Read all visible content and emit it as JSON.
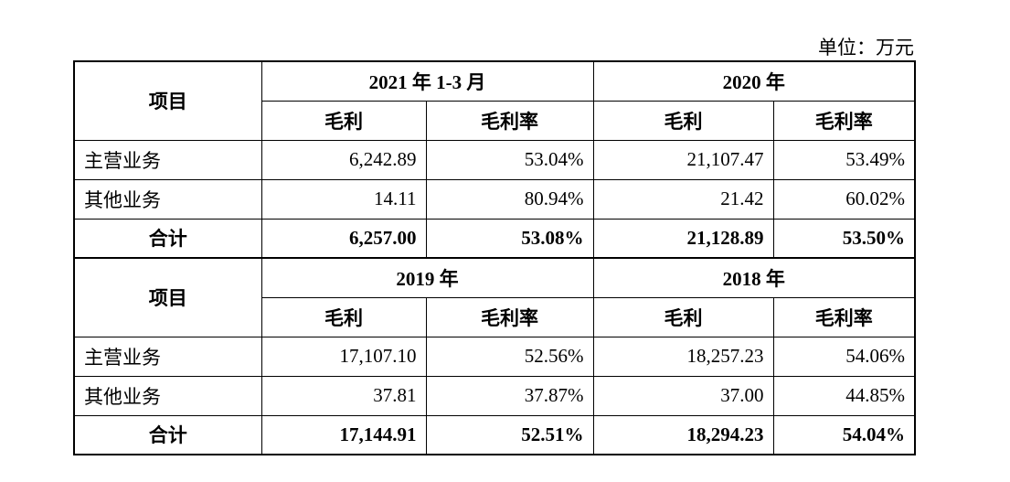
{
  "unit": "单位：万元",
  "sections": [
    {
      "item_header": "项目",
      "periods": [
        "2021 年 1-3 月",
        "2020 年"
      ],
      "col_headers": [
        "毛利",
        "毛利率",
        "毛利",
        "毛利率"
      ],
      "rows": [
        [
          "主营业务",
          "6,242.89",
          "53.04%",
          "21,107.47",
          "53.49%"
        ],
        [
          "其他业务",
          "14.11",
          "80.94%",
          "21.42",
          "60.02%"
        ],
        [
          "合计",
          "6,257.00",
          "53.08%",
          "21,128.89",
          "53.50%"
        ]
      ]
    },
    {
      "item_header": "项目",
      "periods": [
        "2019 年",
        "2018 年"
      ],
      "col_headers": [
        "毛利",
        "毛利率",
        "毛利",
        "毛利率"
      ],
      "rows": [
        [
          "主营业务",
          "17,107.10",
          "52.56%",
          "18,257.23",
          "54.06%"
        ],
        [
          "其他业务",
          "37.81",
          "37.87%",
          "37.00",
          "44.85%"
        ],
        [
          "合计",
          "17,144.91",
          "52.51%",
          "18,294.23",
          "54.04%"
        ]
      ]
    }
  ]
}
